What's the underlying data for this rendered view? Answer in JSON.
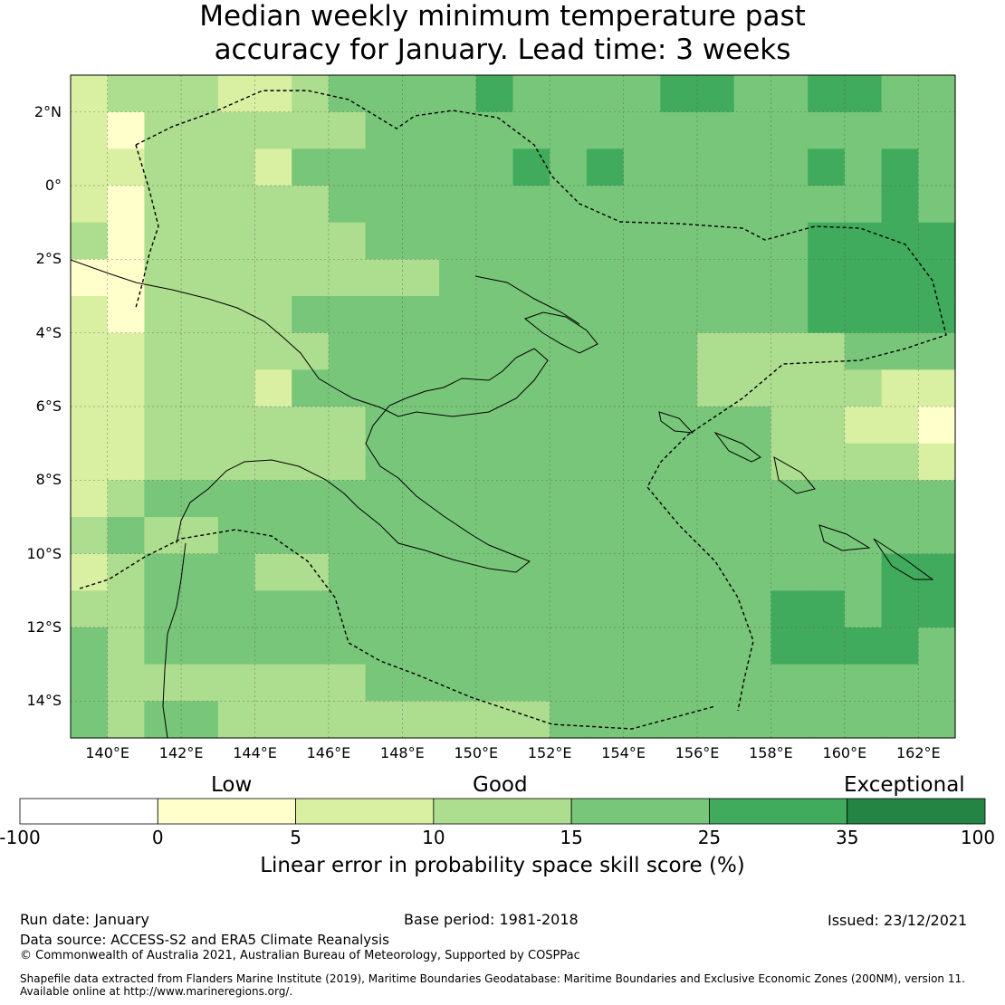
{
  "title_line1": "Median weekly minimum temperature past",
  "title_line2": "accuracy for January. Lead time: 3 weeks",
  "lat_labels": [
    "2°N",
    "0°",
    "2°S",
    "4°S",
    "6°S",
    "8°S",
    "10°S",
    "12°S",
    "14°S"
  ],
  "lon_labels": [
    "140°E",
    "142°E",
    "144°E",
    "146°E",
    "148°E",
    "150°E",
    "152°E",
    "154°E",
    "156°E",
    "158°E",
    "160°E",
    "162°E"
  ],
  "colorbar": {
    "categories": [
      "Low",
      "Good",
      "Exceptional"
    ],
    "ticks": [
      "-100",
      "0",
      "5",
      "10",
      "15",
      "25",
      "35",
      "100"
    ],
    "colors": [
      "#ffffff",
      "#ffffcc",
      "#d9f0a3",
      "#addd8e",
      "#78c679",
      "#41ab5d",
      "#238443"
    ],
    "label": "Linear error in probability space skill score (%)"
  },
  "footer": {
    "run_date": "Run date: January",
    "base_period": "Base period: 1981-2018",
    "issued": "Issued: 23/12/2021",
    "data_source": "Data source: ACCESS-S2 and ERA5 Climate Reanalysis",
    "copyright": "© Commonwealth of Australia 2021, Australian Bureau of Meteorology, Supported by COSPPac",
    "shapefile_line1": "Shapefile data extracted from Flanders Marine Institute (2019), Maritime Boundaries Geodatabase: Maritime Boundaries and Exclusive Economic Zones (200NM), version 11.",
    "shapefile_line2": "Available online at http://www.marineregions.org/."
  },
  "map_grid": {
    "lon_start": 139.0,
    "lat_start": 3.0,
    "cell_size_deg": 0.833,
    "cols": 24,
    "rows": 18,
    "class_rows": [
      "233322344445444455445544",
      "213333334444444444444444",
      "223332444444545444445454",
      "213333344444444444444454",
      "313333334444444444445555",
      "113333333344444444445555",
      "213333444444444444445555",
      "223333344444444443333444",
      "223332444444444443333322",
      "223333334444444444433221",
      "223333334444444444433332",
      "234444444444444444444444",
      "343344444444444444444444",
      "234443344444444444444455",
      "334444444444444444455455",
      "434444444444444444455554",
      "433333334444444444444444",
      "434433333333344444444444"
    ]
  }
}
